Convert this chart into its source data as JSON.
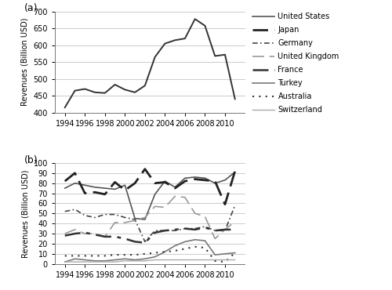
{
  "years": [
    1994,
    1995,
    1996,
    1997,
    1998,
    1999,
    2000,
    2001,
    2002,
    2003,
    2004,
    2005,
    2006,
    2007,
    2008,
    2009,
    2010,
    2011
  ],
  "total": [
    415,
    465,
    470,
    460,
    458,
    483,
    468,
    460,
    480,
    565,
    605,
    615,
    620,
    678,
    658,
    568,
    572,
    440
  ],
  "nations": {
    "United States": [
      75,
      80,
      78,
      76,
      75,
      74,
      78,
      45,
      44,
      69,
      82,
      76,
      85,
      86,
      85,
      80,
      83,
      91
    ],
    "Japan": [
      82,
      90,
      70,
      71,
      69,
      81,
      73,
      80,
      94,
      80,
      81,
      75,
      82,
      84,
      83,
      82,
      59,
      92
    ],
    "Germany": [
      52,
      54,
      48,
      46,
      49,
      49,
      46,
      44,
      22,
      33,
      33,
      33,
      35,
      35,
      37,
      33,
      33,
      58
    ],
    "United Kingdom": [
      30,
      34,
      30,
      30,
      27,
      41,
      41,
      43,
      46,
      57,
      56,
      67,
      66,
      50,
      47,
      25,
      34,
      42
    ],
    "France": [
      28,
      30,
      31,
      29,
      27,
      27,
      25,
      22,
      21,
      31,
      33,
      34,
      35,
      34,
      36,
      33,
      34,
      34
    ],
    "Turkey": [
      2,
      5,
      4,
      3,
      3,
      4,
      5,
      4,
      5,
      7,
      12,
      18,
      22,
      24,
      23,
      9,
      10,
      11
    ],
    "Australia": [
      8,
      8,
      8,
      8,
      8,
      9,
      9,
      9,
      10,
      11,
      12,
      13,
      15,
      17,
      16,
      3,
      2,
      11
    ],
    "Switzerland": [
      2,
      2,
      2,
      2,
      2,
      2,
      3,
      3,
      3,
      4,
      4,
      4,
      4,
      4,
      4,
      4,
      4,
      4
    ]
  },
  "nation_order": [
    "United States",
    "Japan",
    "Germany",
    "United Kingdom",
    "France",
    "Turkey",
    "Australia",
    "Switzerland"
  ],
  "ylabel_a": "Revenues (Billion USD)",
  "ylabel_b": "Revenues (Billion USD)",
  "ylim_a": [
    400,
    700
  ],
  "ylim_b": [
    0,
    100
  ],
  "yticks_a": [
    400,
    450,
    500,
    550,
    600,
    650,
    700
  ],
  "yticks_b": [
    0,
    10,
    20,
    30,
    40,
    50,
    60,
    70,
    80,
    90,
    100
  ],
  "xticks": [
    1994,
    1996,
    1998,
    2000,
    2002,
    2004,
    2006,
    2008,
    2010
  ],
  "label_a": "(a)",
  "label_b": "(b)",
  "total_color": "#333333",
  "total_linewidth": 1.4,
  "grid_color": "#cccccc",
  "grid_linewidth": 0.7,
  "tick_fontsize": 7,
  "ylabel_fontsize": 7,
  "label_fontsize": 9,
  "legend_fontsize": 7,
  "background_color": "#ffffff"
}
